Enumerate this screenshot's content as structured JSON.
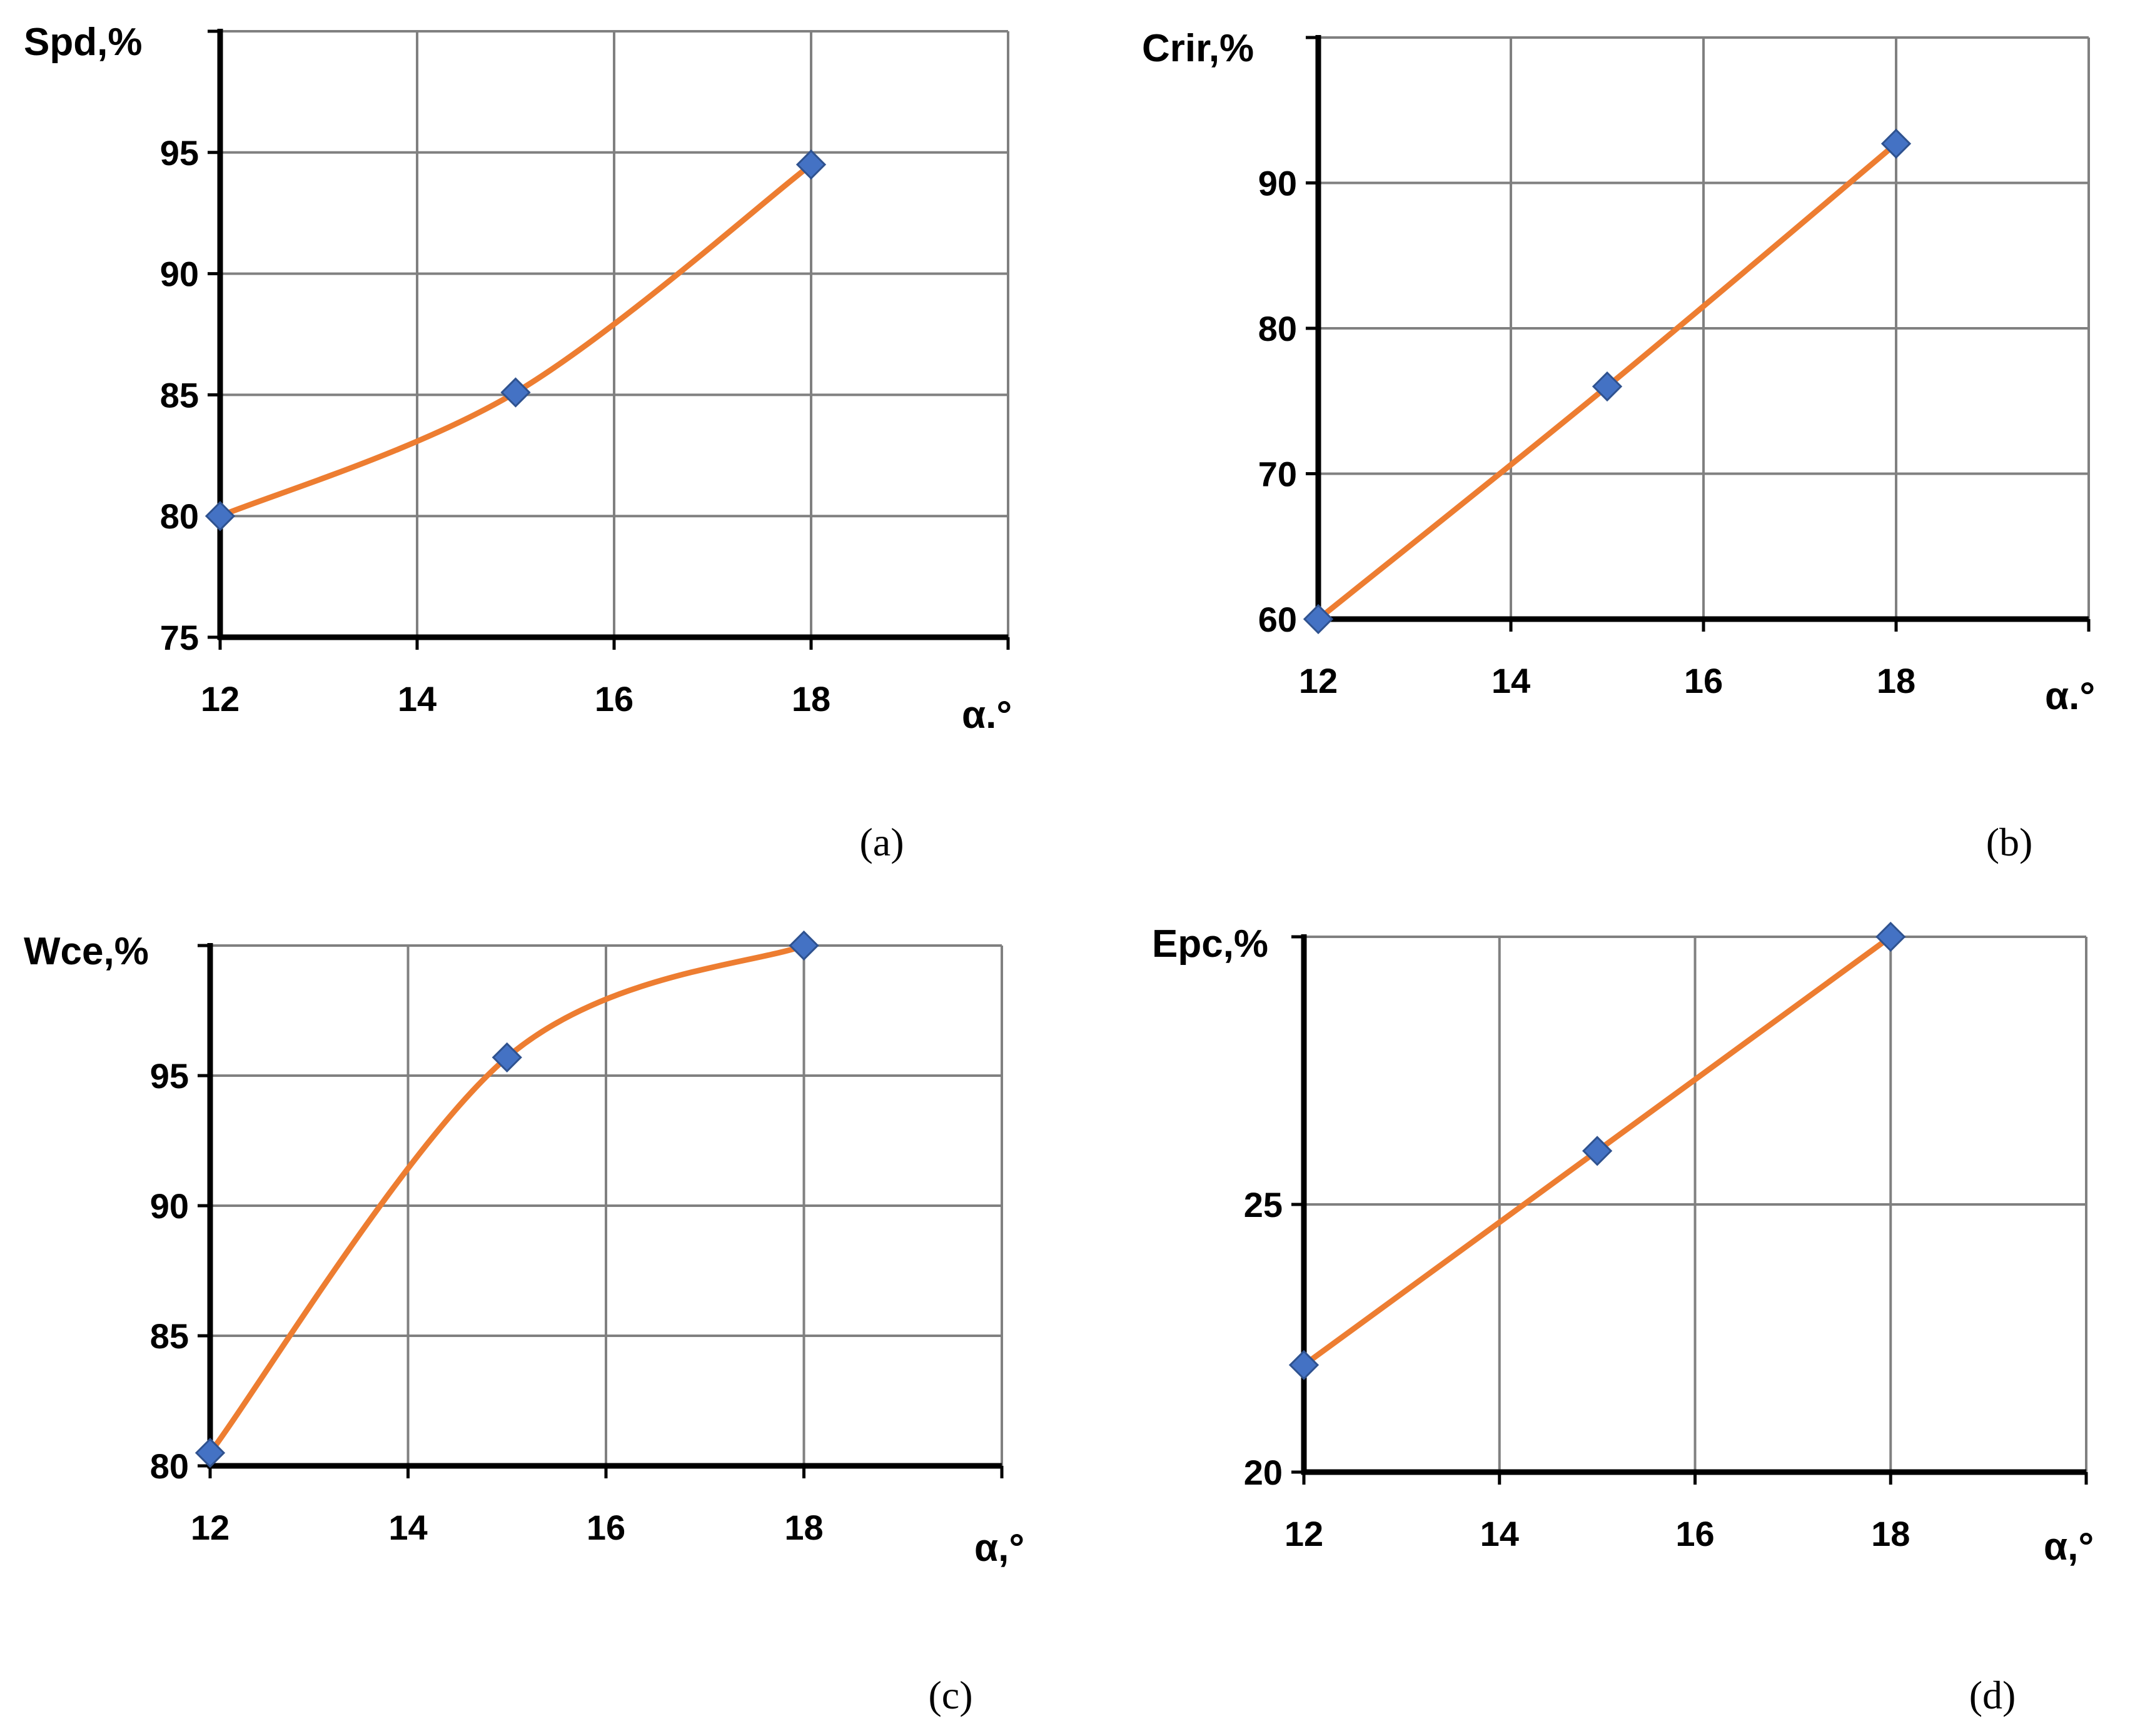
{
  "colors": {
    "line": "#ed7d31",
    "marker": "#4472c4",
    "grid": "#808080",
    "axis": "#000000"
  },
  "chart_data": [
    {
      "type": "line",
      "panel": "(a)",
      "ylabel": "Spd,%",
      "xlabel": "α.°",
      "x": [
        12,
        15,
        18
      ],
      "y": [
        80,
        85.1,
        94.5
      ],
      "xlim": [
        12,
        20
      ],
      "ylim": [
        75,
        100
      ],
      "xticks": [
        12,
        14,
        16,
        18
      ],
      "yticks": [
        75,
        80,
        85,
        90,
        95
      ],
      "grid": true,
      "smooth": true
    },
    {
      "type": "line",
      "panel": "(b)",
      "ylabel": "Crir,%",
      "xlabel": "α.°",
      "x": [
        12,
        15,
        18
      ],
      "y": [
        60,
        76,
        92.7
      ],
      "xlim": [
        12,
        20
      ],
      "ylim": [
        60,
        100
      ],
      "xticks": [
        12,
        14,
        16,
        18
      ],
      "yticks": [
        60,
        70,
        80,
        90
      ],
      "grid": true,
      "smooth": true
    },
    {
      "type": "line",
      "panel": "(c)",
      "ylabel": "Wce,%",
      "xlabel": "α,°",
      "x": [
        12,
        15,
        18
      ],
      "y": [
        80.5,
        95.7,
        100
      ],
      "xlim": [
        12,
        20
      ],
      "ylim": [
        80,
        100
      ],
      "xticks": [
        12,
        14,
        16,
        18
      ],
      "yticks": [
        80,
        85,
        90,
        95
      ],
      "grid": true,
      "smooth": true
    },
    {
      "type": "line",
      "panel": "(d)",
      "ylabel": "Epc,%",
      "xlabel": "α,°",
      "x": [
        12,
        15,
        18
      ],
      "y": [
        22,
        26,
        30
      ],
      "xlim": [
        12,
        20
      ],
      "ylim": [
        20,
        30
      ],
      "xticks": [
        12,
        14,
        16,
        18
      ],
      "yticks": [
        20,
        25
      ],
      "grid": true,
      "smooth": true
    }
  ]
}
